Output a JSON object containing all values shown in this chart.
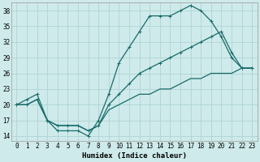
{
  "xlabel": "Humidex (Indice chaleur)",
  "ylabel": "",
  "background_color": "#ceeaea",
  "grid_color": "#afd4d4",
  "line_color": "#1a6b6b",
  "xlim": [
    -0.5,
    23.5
  ],
  "ylim": [
    13,
    39.5
  ],
  "xticks": [
    0,
    1,
    2,
    3,
    4,
    5,
    6,
    7,
    8,
    9,
    10,
    11,
    12,
    13,
    14,
    15,
    16,
    17,
    18,
    19,
    20,
    21,
    22,
    23
  ],
  "yticks": [
    14,
    17,
    20,
    23,
    26,
    29,
    32,
    35,
    38
  ],
  "line1_x": [
    0,
    1,
    2,
    3,
    4,
    5,
    6,
    7,
    8,
    9,
    10,
    11,
    12,
    13,
    14,
    15,
    16,
    17,
    18,
    19,
    20,
    21,
    22,
    23
  ],
  "line1_y": [
    20,
    21,
    22,
    17,
    15,
    15,
    15,
    14,
    17,
    22,
    28,
    31,
    34,
    37,
    37,
    37,
    38,
    39,
    38,
    36,
    33,
    29,
    27,
    27
  ],
  "line2_x": [
    0,
    1,
    2,
    3,
    4,
    5,
    6,
    7,
    8,
    9,
    10,
    11,
    12,
    13,
    14,
    15,
    16,
    17,
    18,
    19,
    20,
    21,
    22,
    23
  ],
  "line2_y": [
    20,
    20,
    21,
    17,
    16,
    16,
    16,
    15,
    16,
    20,
    22,
    24,
    26,
    27,
    28,
    29,
    30,
    31,
    32,
    33,
    34,
    30,
    27,
    27
  ],
  "line3_x": [
    0,
    1,
    2,
    3,
    4,
    5,
    6,
    7,
    8,
    9,
    10,
    11,
    12,
    13,
    14,
    15,
    16,
    17,
    18,
    19,
    20,
    21,
    22,
    23
  ],
  "line3_y": [
    20,
    20,
    21,
    17,
    16,
    16,
    16,
    15,
    16,
    19,
    20,
    21,
    22,
    22,
    23,
    23,
    24,
    25,
    25,
    26,
    26,
    26,
    27,
    27
  ],
  "tick_fontsize": 5.5,
  "xlabel_fontsize": 6.5,
  "marker_size": 2.5,
  "line_width": 0.9
}
